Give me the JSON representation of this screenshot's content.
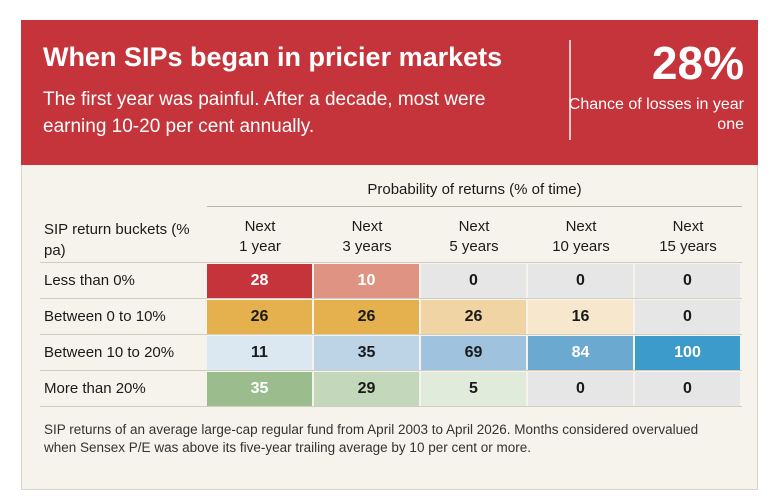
{
  "header": {
    "title": "When SIPs began in pricier markets",
    "subtitle": "The first year was painful. After a decade, most were earning 10-20 per cent annually.",
    "stat_value": "28%",
    "stat_label": "Chance of losses in year one"
  },
  "colors": {
    "header_bg": "#c5343a",
    "panel_bg": "#f6f3ec"
  },
  "chart_data": {
    "type": "heatmap",
    "title": "Probability of returns (% of time)",
    "row_header": "SIP return buckets (% pa)",
    "columns": [
      {
        "line1": "Next",
        "line2": "1 year"
      },
      {
        "line1": "Next",
        "line2": "3 years"
      },
      {
        "line1": "Next",
        "line2": "5 years"
      },
      {
        "line1": "Next",
        "line2": "10 years"
      },
      {
        "line1": "Next",
        "line2": "15 years"
      }
    ],
    "rows": [
      {
        "label": "Less than 0%",
        "values": [
          "28",
          "10",
          "0",
          "0",
          "0"
        ],
        "colors": [
          "#c5343a",
          "#df9383",
          "#e6e6e6",
          "#e6e6e6",
          "#e6e6e6"
        ],
        "text_colors": [
          "#ffffff",
          "#ffffff",
          "#1a1a1a",
          "#1a1a1a",
          "#1a1a1a"
        ]
      },
      {
        "label": "Between 0 to 10%",
        "values": [
          "26",
          "26",
          "26",
          "16",
          "0"
        ],
        "colors": [
          "#e5b14e",
          "#e5b14e",
          "#f0d4a3",
          "#f7e8cd",
          "#e6e6e6"
        ],
        "text_colors": [
          "#1a1a1a",
          "#1a1a1a",
          "#1a1a1a",
          "#1a1a1a",
          "#1a1a1a"
        ]
      },
      {
        "label": "Between 10 to 20%",
        "values": [
          "11",
          "35",
          "69",
          "84",
          "100"
        ],
        "colors": [
          "#dbe7f1",
          "#bcd4e6",
          "#9fc3df",
          "#6ba9d0",
          "#3c9bcb"
        ],
        "text_colors": [
          "#1a1a1a",
          "#1a1a1a",
          "#1a1a1a",
          "#ffffff",
          "#ffffff"
        ]
      },
      {
        "label": "More than 20%",
        "values": [
          "35",
          "29",
          "5",
          "0",
          "0"
        ],
        "colors": [
          "#9bbd8e",
          "#c3d7bb",
          "#e1ebdc",
          "#e6e6e6",
          "#e6e6e6"
        ],
        "text_colors": [
          "#ffffff",
          "#1a1a1a",
          "#1a1a1a",
          "#1a1a1a",
          "#1a1a1a"
        ]
      }
    ]
  },
  "footnote": "SIP returns of an average large-cap regular fund from April 2003 to April 2026. Months considered overvalued when Sensex P/E was above its five-year trailing average by 10 per cent or more."
}
